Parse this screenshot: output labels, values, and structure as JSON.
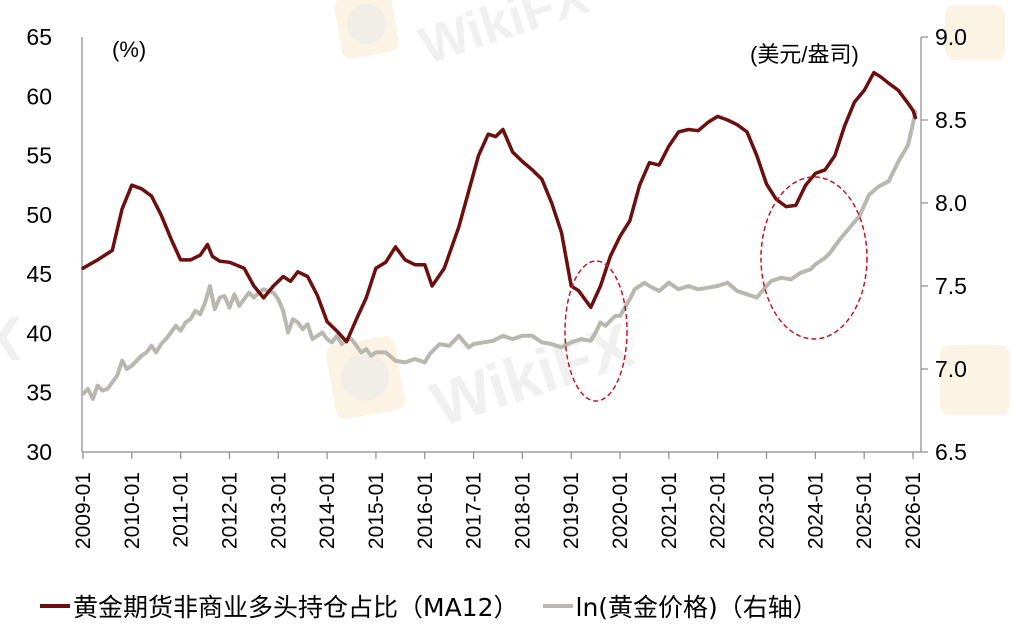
{
  "chart_data": {
    "type": "line",
    "title": "",
    "xlabel": "",
    "ylabel": "(%)",
    "ylabel_right": "(美元/盎司)",
    "x_ticks": [
      "2009-01",
      "2010-01",
      "2011-01",
      "2012-01",
      "2013-01",
      "2014-01",
      "2015-01",
      "2016-01",
      "2017-01",
      "2018-01",
      "2019-01",
      "2020-01",
      "2021-01",
      "2022-01",
      "2023-01",
      "2024-01",
      "2025-01",
      "2026-01"
    ],
    "y_left_ticks": [
      "65",
      "60",
      "55",
      "50",
      "45",
      "40",
      "35",
      "30"
    ],
    "y_right_ticks": [
      "9.0",
      "8.5",
      "8.0",
      "7.5",
      "7.0",
      "6.5"
    ],
    "ylim_left": [
      30,
      65
    ],
    "ylim_right": [
      6.5,
      9.0
    ],
    "xlim": [
      2009.0,
      2026.1
    ],
    "grid": false,
    "legend_position": "bottom",
    "series": [
      {
        "name": "黄金期货非商业多头持仓占比（MA12）",
        "axis": "left",
        "color": "#6b0f0f",
        "x": [
          2009.0,
          2009.3,
          2009.6,
          2009.8,
          2010.0,
          2010.2,
          2010.4,
          2010.6,
          2010.8,
          2011.0,
          2011.2,
          2011.4,
          2011.55,
          2011.65,
          2011.8,
          2012.0,
          2012.3,
          2012.5,
          2012.7,
          2012.9,
          2013.1,
          2013.25,
          2013.4,
          2013.6,
          2013.8,
          2014.0,
          2014.2,
          2014.4,
          2014.6,
          2014.8,
          2015.0,
          2015.2,
          2015.4,
          2015.6,
          2015.8,
          2016.0,
          2016.15,
          2016.4,
          2016.7,
          2016.9,
          2017.1,
          2017.3,
          2017.45,
          2017.6,
          2017.8,
          2018.0,
          2018.2,
          2018.4,
          2018.6,
          2018.8,
          2019.0,
          2019.15,
          2019.4,
          2019.6,
          2019.8,
          2020.0,
          2020.2,
          2020.4,
          2020.6,
          2020.8,
          2021.0,
          2021.2,
          2021.4,
          2021.6,
          2021.8,
          2022.0,
          2022.2,
          2022.4,
          2022.6,
          2022.8,
          2023.0,
          2023.2,
          2023.4,
          2023.6,
          2023.8,
          2024.0,
          2024.2,
          2024.4,
          2024.6,
          2024.8,
          2025.0,
          2025.2,
          2025.35,
          2025.5,
          2025.7,
          2025.9,
          2026.0,
          2026.05
        ],
        "values": [
          45.5,
          46.2,
          47.0,
          50.5,
          52.5,
          52.2,
          51.6,
          50.0,
          48.0,
          46.2,
          46.2,
          46.6,
          47.5,
          46.5,
          46.1,
          46.0,
          45.5,
          44.0,
          43.0,
          44.0,
          44.8,
          44.4,
          45.2,
          44.8,
          43.2,
          41.0,
          40.2,
          39.3,
          41.2,
          43.0,
          45.5,
          46.0,
          47.3,
          46.2,
          45.8,
          45.8,
          44.0,
          45.5,
          49.0,
          52.0,
          55.0,
          56.8,
          56.6,
          57.2,
          55.3,
          54.5,
          53.8,
          53.0,
          51.0,
          48.5,
          44.0,
          43.6,
          42.2,
          44.0,
          46.5,
          48.2,
          49.5,
          52.5,
          54.4,
          54.2,
          55.8,
          57.0,
          57.2,
          57.1,
          57.8,
          58.3,
          58.0,
          57.6,
          57.0,
          55.0,
          52.6,
          51.3,
          50.7,
          50.8,
          52.5,
          53.5,
          53.8,
          55.0,
          57.5,
          59.5,
          60.5,
          62.0,
          61.6,
          61.1,
          60.5,
          59.4,
          58.8,
          58.2
        ]
      },
      {
        "name": "ln(黄金价格)（右轴）",
        "axis": "right",
        "color": "#b8b8b0",
        "x": [
          2009.0,
          2009.1,
          2009.2,
          2009.3,
          2009.4,
          2009.5,
          2009.6,
          2009.7,
          2009.8,
          2009.9,
          2010.0,
          2010.1,
          2010.2,
          2010.3,
          2010.4,
          2010.5,
          2010.6,
          2010.7,
          2010.8,
          2010.9,
          2011.0,
          2011.1,
          2011.2,
          2011.3,
          2011.4,
          2011.5,
          2011.6,
          2011.7,
          2011.8,
          2011.9,
          2012.0,
          2012.1,
          2012.2,
          2012.3,
          2012.4,
          2012.5,
          2012.6,
          2012.7,
          2012.8,
          2012.9,
          2013.0,
          2013.1,
          2013.2,
          2013.3,
          2013.4,
          2013.5,
          2013.6,
          2013.7,
          2013.8,
          2013.9,
          2014.0,
          2014.1,
          2014.2,
          2014.3,
          2014.4,
          2014.5,
          2014.6,
          2014.7,
          2014.8,
          2014.9,
          2015.0,
          2015.2,
          2015.4,
          2015.6,
          2015.8,
          2016.0,
          2016.1,
          2016.2,
          2016.3,
          2016.5,
          2016.7,
          2016.9,
          2017.0,
          2017.2,
          2017.4,
          2017.6,
          2017.8,
          2018.0,
          2018.2,
          2018.4,
          2018.6,
          2018.8,
          2019.0,
          2019.2,
          2019.4,
          2019.5,
          2019.6,
          2019.7,
          2019.9,
          2020.0,
          2020.2,
          2020.3,
          2020.5,
          2020.6,
          2020.8,
          2021.0,
          2021.2,
          2021.4,
          2021.6,
          2021.8,
          2022.0,
          2022.2,
          2022.4,
          2022.6,
          2022.8,
          2023.0,
          2023.1,
          2023.3,
          2023.5,
          2023.7,
          2023.9,
          2024.0,
          2024.2,
          2024.3,
          2024.5,
          2024.7,
          2024.9,
          2025.1,
          2025.3,
          2025.5,
          2025.7,
          2025.9,
          2026.0,
          2026.05
        ],
        "values": [
          6.85,
          6.88,
          6.82,
          6.9,
          6.87,
          6.88,
          6.92,
          6.96,
          7.05,
          7.0,
          7.02,
          7.05,
          7.08,
          7.1,
          7.14,
          7.1,
          7.15,
          7.18,
          7.22,
          7.26,
          7.23,
          7.28,
          7.3,
          7.35,
          7.33,
          7.4,
          7.5,
          7.36,
          7.43,
          7.44,
          7.37,
          7.45,
          7.38,
          7.42,
          7.46,
          7.43,
          7.46,
          7.48,
          7.47,
          7.46,
          7.42,
          7.35,
          7.22,
          7.3,
          7.28,
          7.24,
          7.27,
          7.18,
          7.2,
          7.22,
          7.18,
          7.16,
          7.2,
          7.15,
          7.18,
          7.18,
          7.14,
          7.1,
          7.12,
          7.08,
          7.1,
          7.1,
          7.05,
          7.04,
          7.06,
          7.04,
          7.09,
          7.12,
          7.15,
          7.14,
          7.2,
          7.13,
          7.15,
          7.16,
          7.17,
          7.2,
          7.18,
          7.2,
          7.2,
          7.16,
          7.15,
          7.13,
          7.16,
          7.18,
          7.17,
          7.22,
          7.28,
          7.26,
          7.32,
          7.32,
          7.42,
          7.48,
          7.52,
          7.5,
          7.47,
          7.52,
          7.48,
          7.5,
          7.48,
          7.49,
          7.5,
          7.52,
          7.47,
          7.45,
          7.43,
          7.5,
          7.53,
          7.55,
          7.54,
          7.58,
          7.6,
          7.63,
          7.67,
          7.7,
          7.78,
          7.85,
          7.92,
          8.05,
          8.1,
          8.13,
          8.25,
          8.35,
          8.48,
          8.55
        ]
      }
    ],
    "annotations": [
      {
        "type": "dashed-ellipse",
        "color": "#c0152a",
        "around": "2019-01 to 2020-01"
      },
      {
        "type": "dashed-ellipse",
        "color": "#c0152a",
        "around": "2023-01 to 2024-10"
      }
    ]
  },
  "legend": {
    "items": [
      {
        "label": "黄金期货非商业多头持仓占比（MA12）",
        "color": "#6b0f0f"
      },
      {
        "label": "ln(黄金价格)（右轴）",
        "color": "#b8b8b0"
      }
    ]
  },
  "watermark": {
    "text": "WikiFX"
  }
}
